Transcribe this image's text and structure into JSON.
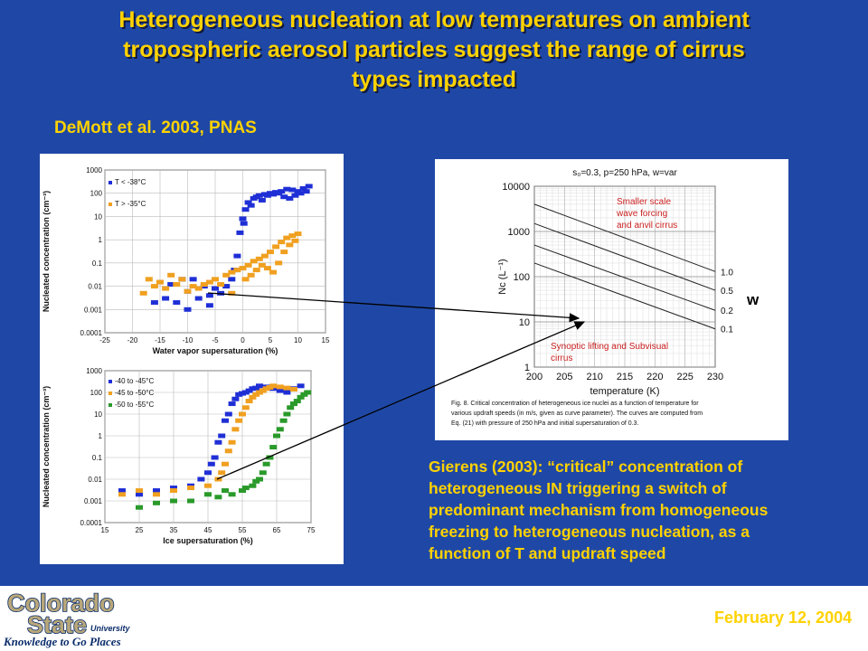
{
  "slide": {
    "title_lines": [
      "Heterogeneous nucleation at low temperatures on ambient",
      "tropospheric aerosol particles suggest the range of cirrus",
      "types impacted"
    ],
    "citation": "DeMott et al. 2003, PNAS",
    "caption_lines": [
      "Gierens (2003): “critical” concentration of",
      "heterogeneous IN triggering a switch of",
      "predominant mechanism from homogeneous",
      "freezing to heterogeneous nucleation, as a",
      "function of T and updraft speed"
    ],
    "w_label": "w",
    "date": "February 12, 2004",
    "logo": {
      "line1": "Colorado",
      "line2": "State",
      "line3": "University",
      "tagline": "Knowledge to Go Places"
    },
    "colors": {
      "background": "#1f48a6",
      "title": "#ffd200",
      "footer": "#ffffff"
    }
  },
  "chart_data": [
    {
      "type": "scatter",
      "ylabel": "Nucleated concentration (cm⁻³)",
      "xlabel": "Water vapor supersaturation (%)",
      "x_ticks": [
        "-25",
        "-20",
        "-15",
        "-10",
        "-5",
        "0",
        "5",
        "10",
        "15"
      ],
      "y_ticks": [
        "1000",
        "100",
        "10",
        "1",
        "0.1",
        "0.01",
        "0.001",
        "0.0001"
      ],
      "xlim": [
        -25,
        15
      ],
      "ylim": [
        0.0001,
        1000
      ],
      "y_scale": "log",
      "legend": [
        "T < -38°C",
        "T > -35°C"
      ],
      "series": [
        {
          "name": "T < -38°C",
          "color": "#1f2fd6",
          "points": [
            [
              -14,
              0.003
            ],
            [
              -12,
              0.002
            ],
            [
              -10,
              0.006
            ],
            [
              -8,
              0.003
            ],
            [
              -6,
              0.004
            ],
            [
              -4,
              0.005
            ],
            [
              -3,
              0.01
            ],
            [
              -2,
              0.02
            ],
            [
              -1,
              0.2
            ],
            [
              -0.5,
              2
            ],
            [
              0,
              8
            ],
            [
              0.5,
              20
            ],
            [
              1,
              40
            ],
            [
              2,
              60
            ],
            [
              3,
              80
            ],
            [
              4,
              90
            ],
            [
              5,
              100
            ],
            [
              6,
              110
            ],
            [
              7,
              120
            ],
            [
              8,
              150
            ],
            [
              9,
              140
            ],
            [
              10,
              120
            ],
            [
              11,
              160
            ],
            [
              12,
              200
            ],
            [
              -15,
              0.015
            ],
            [
              -13,
              0.012
            ],
            [
              -11,
              0.02
            ],
            [
              -9,
              0.02
            ],
            [
              -7,
              0.01
            ],
            [
              -5,
              0.008
            ],
            [
              -1.5,
              0.05
            ],
            [
              0.2,
              5
            ],
            [
              1.5,
              30
            ],
            [
              2.5,
              70
            ],
            [
              3.5,
              50
            ],
            [
              4.5,
              80
            ],
            [
              5.5,
              90
            ],
            [
              6.5,
              100
            ],
            [
              7.5,
              70
            ],
            [
              8.5,
              60
            ],
            [
              9.5,
              80
            ],
            [
              10.5,
              100
            ],
            [
              11.5,
              120
            ],
            [
              -16,
              0.002
            ],
            [
              -10,
              0.001
            ],
            [
              -6,
              0.0015
            ]
          ]
        },
        {
          "name": "T > -35°C",
          "color": "#f0a020",
          "points": [
            [
              -17,
              0.02
            ],
            [
              -15,
              0.015
            ],
            [
              -13,
              0.03
            ],
            [
              -11,
              0.02
            ],
            [
              -9,
              0.01
            ],
            [
              -7,
              0.012
            ],
            [
              -5,
              0.02
            ],
            [
              -3,
              0.03
            ],
            [
              -1,
              0.05
            ],
            [
              0,
              0.06
            ],
            [
              1,
              0.08
            ],
            [
              2,
              0.12
            ],
            [
              3,
              0.15
            ],
            [
              4,
              0.2
            ],
            [
              5,
              0.3
            ],
            [
              6,
              0.5
            ],
            [
              7,
              0.8
            ],
            [
              8,
              1.2
            ],
            [
              9,
              1.5
            ],
            [
              10,
              1.8
            ],
            [
              -16,
              0.01
            ],
            [
              -14,
              0.008
            ],
            [
              -12,
              0.012
            ],
            [
              -10,
              0.006
            ],
            [
              -8,
              0.008
            ],
            [
              -6,
              0.015
            ],
            [
              -4,
              0.012
            ],
            [
              -2,
              0.04
            ],
            [
              0.5,
              0.02
            ],
            [
              1.5,
              0.03
            ],
            [
              2.5,
              0.05
            ],
            [
              3.5,
              0.08
            ],
            [
              4.5,
              0.06
            ],
            [
              5.5,
              0.04
            ],
            [
              6.5,
              0.1
            ],
            [
              7.5,
              0.3
            ],
            [
              8.5,
              0.6
            ],
            [
              9.5,
              0.9
            ],
            [
              -18,
              0.005
            ],
            [
              -2,
              0.005
            ]
          ]
        }
      ]
    },
    {
      "type": "scatter",
      "ylabel": "Nucleated concentration (cm⁻³)",
      "xlabel": "Ice supersaturation (%)",
      "x_ticks": [
        "15",
        "25",
        "35",
        "45",
        "55",
        "65",
        "75"
      ],
      "y_ticks": [
        "1000",
        "100",
        "10",
        "1",
        "0.1",
        "0.01",
        "0.001",
        "0.0001"
      ],
      "xlim": [
        15,
        75
      ],
      "ylim": [
        0.0001,
        1000
      ],
      "y_scale": "log",
      "legend": [
        "-40 to -45°C",
        "-45 to -50°C",
        "-50 to -55°C"
      ],
      "series": [
        {
          "name": "-40 to -45°C",
          "color": "#1f2fd6",
          "points": [
            [
              20,
              0.003
            ],
            [
              25,
              0.002
            ],
            [
              30,
              0.003
            ],
            [
              35,
              0.004
            ],
            [
              40,
              0.005
            ],
            [
              43,
              0.01
            ],
            [
              46,
              0.05
            ],
            [
              48,
              0.5
            ],
            [
              50,
              5
            ],
            [
              52,
              30
            ],
            [
              54,
              80
            ],
            [
              56,
              100
            ],
            [
              58,
              150
            ],
            [
              60,
              200
            ],
            [
              62,
              180
            ],
            [
              64,
              150
            ],
            [
              66,
              120
            ],
            [
              68,
              100
            ],
            [
              70,
              150
            ],
            [
              72,
              200
            ],
            [
              45,
              0.02
            ],
            [
              47,
              0.1
            ],
            [
              49,
              1
            ],
            [
              51,
              10
            ],
            [
              53,
              50
            ],
            [
              55,
              90
            ],
            [
              57,
              120
            ],
            [
              59,
              160
            ]
          ]
        },
        {
          "name": "-45 to -50°C",
          "color": "#f0a020",
          "points": [
            [
              20,
              0.002
            ],
            [
              25,
              0.003
            ],
            [
              30,
              0.002
            ],
            [
              35,
              0.003
            ],
            [
              40,
              0.004
            ],
            [
              45,
              0.005
            ],
            [
              48,
              0.01
            ],
            [
              50,
              0.05
            ],
            [
              52,
              0.5
            ],
            [
              54,
              5
            ],
            [
              56,
              20
            ],
            [
              58,
              60
            ],
            [
              60,
              100
            ],
            [
              62,
              150
            ],
            [
              64,
              200
            ],
            [
              66,
              180
            ],
            [
              68,
              160
            ],
            [
              70,
              140
            ],
            [
              49,
              0.02
            ],
            [
              51,
              0.2
            ],
            [
              53,
              2
            ],
            [
              55,
              10
            ],
            [
              57,
              40
            ],
            [
              59,
              80
            ],
            [
              61,
              120
            ],
            [
              63,
              170
            ]
          ]
        },
        {
          "name": "-50 to -55°C",
          "color": "#2a9a2a",
          "points": [
            [
              25,
              0.0005
            ],
            [
              30,
              0.0008
            ],
            [
              35,
              0.001
            ],
            [
              40,
              0.001
            ],
            [
              45,
              0.002
            ],
            [
              50,
              0.003
            ],
            [
              55,
              0.003
            ],
            [
              58,
              0.005
            ],
            [
              60,
              0.01
            ],
            [
              62,
              0.05
            ],
            [
              64,
              0.3
            ],
            [
              66,
              2
            ],
            [
              68,
              10
            ],
            [
              70,
              30
            ],
            [
              72,
              60
            ],
            [
              74,
              100
            ],
            [
              56,
              0.004
            ],
            [
              59,
              0.008
            ],
            [
              61,
              0.02
            ],
            [
              63,
              0.1
            ],
            [
              65,
              1
            ],
            [
              67,
              5
            ],
            [
              69,
              20
            ],
            [
              71,
              40
            ],
            [
              73,
              80
            ],
            [
              52,
              0.002
            ],
            [
              48,
              0.0015
            ]
          ]
        }
      ]
    },
    {
      "type": "line",
      "title": "s₀=0.3, p=250 hPa, w=var",
      "xlabel": "temperature (K)",
      "ylabel": "Nᴄ (L⁻¹)",
      "x_ticks": [
        "200",
        "205",
        "210",
        "215",
        "220",
        "225",
        "230"
      ],
      "y_ticks": [
        "10000",
        "1000",
        "100",
        "10",
        "1"
      ],
      "xlim": [
        200,
        230
      ],
      "ylim": [
        1,
        10000
      ],
      "y_scale": "log",
      "grid": true,
      "annotations": [
        "Smaller scale wave forcing and anvil cirrus",
        "Synoptic lifting and Subvisual cirrus"
      ],
      "series": [
        {
          "name": "1.0",
          "x": [
            200,
            230
          ],
          "y": [
            4000,
            130
          ]
        },
        {
          "name": "0.5",
          "x": [
            200,
            230
          ],
          "y": [
            1500,
            50
          ]
        },
        {
          "name": "0.2",
          "x": [
            200,
            230
          ],
          "y": [
            500,
            18
          ]
        },
        {
          "name": "0.1",
          "x": [
            200,
            230
          ],
          "y": [
            200,
            7
          ]
        }
      ],
      "figure_caption": [
        "Fig. 8.    Critical concentration of heterogeneous ice nuclei as a function of temperature for",
        "various updraft speeds (in m/s, given as curve parameter). The curves are computed from",
        "Eq. (21) with pressure of 250 hPa and initial supersaturation of 0.3."
      ]
    }
  ]
}
